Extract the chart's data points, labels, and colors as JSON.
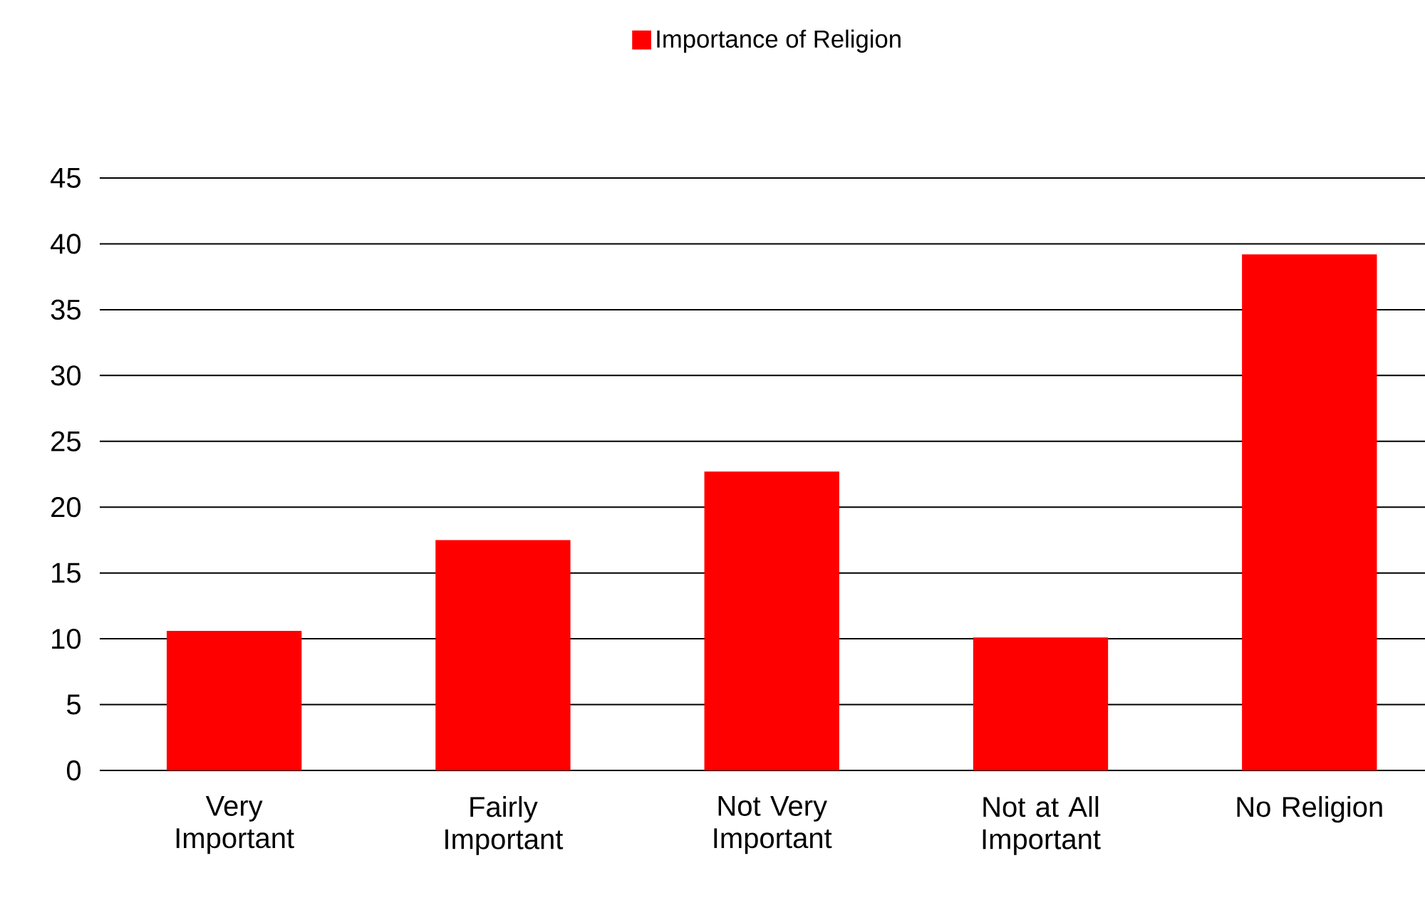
{
  "chart_data": {
    "type": "bar",
    "categories": [
      "Very Important",
      "Fairly Important",
      "Not Very Important",
      "Not at All Important",
      "No Religion"
    ],
    "series": [
      {
        "name": "Importance of Religion",
        "color": "#ff0000",
        "values": [
          10.6,
          17.5,
          22.7,
          10.1,
          39.2
        ]
      }
    ],
    "ylim": [
      0,
      45
    ],
    "yticks": [
      0,
      5,
      10,
      15,
      20,
      25,
      30,
      35,
      40,
      45
    ],
    "grid": "y",
    "legend": "top"
  }
}
